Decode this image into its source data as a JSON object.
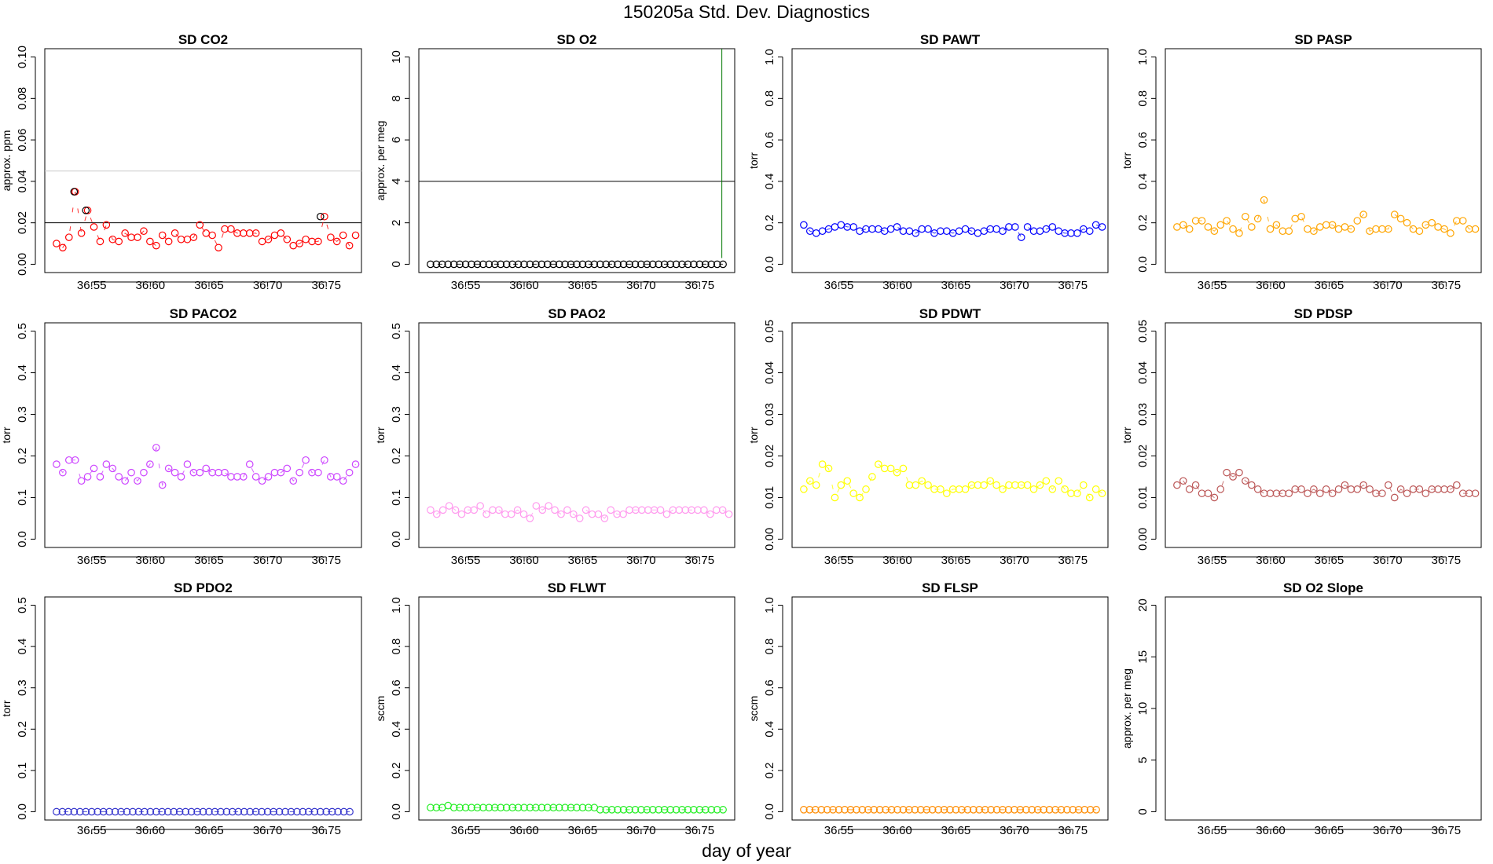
{
  "figure": {
    "title": "150205a   Std. Dev. Diagnostics",
    "xlabel": "day of year"
  },
  "chart_data": [
    {
      "type": "scatter",
      "title": "SD CO2",
      "ylabel": "approx. ppm",
      "color": "#ff0000",
      "xlim": [
        36.51,
        36.78
      ],
      "ylim": [
        0,
        0.1
      ],
      "xticks": [
        "36.55",
        "36.60",
        "36.65",
        "36.70",
        "36.75"
      ],
      "yticks": [
        "0.00",
        "0.02",
        "0.04",
        "0.06",
        "0.08",
        "0.10"
      ],
      "hlines": [
        {
          "y": 0.02,
          "color": "#000000"
        },
        {
          "y": 0.045,
          "color": "#cccccc"
        }
      ],
      "highlight": [
        {
          "x": 36.535,
          "y": 0.035
        },
        {
          "x": 36.545,
          "y": 0.026
        },
        {
          "x": 36.745,
          "y": 0.023
        }
      ],
      "x0": 36.52,
      "x1": 36.775,
      "values": [
        0.01,
        0.008,
        0.013,
        0.035,
        0.015,
        0.026,
        0.018,
        0.011,
        0.019,
        0.012,
        0.011,
        0.015,
        0.013,
        0.013,
        0.016,
        0.011,
        0.009,
        0.014,
        0.011,
        0.015,
        0.012,
        0.012,
        0.013,
        0.019,
        0.015,
        0.014,
        0.008,
        0.017,
        0.017,
        0.015,
        0.015,
        0.015,
        0.015,
        0.011,
        0.012,
        0.014,
        0.015,
        0.012,
        0.009,
        0.01,
        0.012,
        0.011,
        0.011,
        0.023,
        0.013,
        0.011,
        0.014,
        0.009,
        0.014
      ]
    },
    {
      "type": "scatter",
      "title": "SD O2",
      "ylabel": "approx. per meg",
      "color": "#000000",
      "xlim": [
        36.51,
        36.78
      ],
      "ylim": [
        0,
        10
      ],
      "xticks": [
        "36.55",
        "36.60",
        "36.65",
        "36.70",
        "36.75"
      ],
      "yticks": [
        "0",
        "2",
        "4",
        "6",
        "8",
        "10"
      ],
      "hlines": [
        {
          "y": 4,
          "color": "#000000"
        }
      ],
      "vlines": [
        {
          "x": 36.769,
          "y0": 0.3,
          "y1": 10.4,
          "color": "#007700"
        }
      ],
      "x0": 36.52,
      "x1": 36.77,
      "values": [
        0,
        0,
        0,
        0,
        0,
        0,
        0,
        0,
        0,
        0,
        0,
        0,
        0,
        0,
        0,
        0,
        0,
        0,
        0,
        0,
        0,
        0,
        0,
        0,
        0,
        0,
        0,
        0,
        0,
        0,
        0,
        0,
        0,
        0,
        0,
        0,
        0,
        0,
        0,
        0,
        0,
        0,
        0,
        0,
        0,
        0,
        0,
        0,
        0,
        0,
        0
      ]
    },
    {
      "type": "scatter",
      "title": "SD PAWT",
      "ylabel": "torr",
      "color": "#0000ff",
      "xlim": [
        36.51,
        36.78
      ],
      "ylim": [
        0,
        1
      ],
      "xticks": [
        "36.55",
        "36.60",
        "36.65",
        "36.70",
        "36.75"
      ],
      "yticks": [
        "0.0",
        "0.2",
        "0.4",
        "0.6",
        "0.8",
        "1.0"
      ],
      "x0": 36.52,
      "x1": 36.775,
      "values": [
        0.19,
        0.16,
        0.15,
        0.16,
        0.17,
        0.18,
        0.19,
        0.18,
        0.18,
        0.16,
        0.17,
        0.17,
        0.17,
        0.16,
        0.17,
        0.18,
        0.16,
        0.16,
        0.15,
        0.17,
        0.17,
        0.15,
        0.16,
        0.16,
        0.15,
        0.16,
        0.17,
        0.16,
        0.15,
        0.16,
        0.17,
        0.17,
        0.16,
        0.18,
        0.18,
        0.13,
        0.18,
        0.16,
        0.16,
        0.17,
        0.18,
        0.16,
        0.15,
        0.15,
        0.15,
        0.17,
        0.16,
        0.19,
        0.18
      ]
    },
    {
      "type": "scatter",
      "title": "SD PASP",
      "ylabel": "torr",
      "color": "#ffa500",
      "xlim": [
        36.51,
        36.78
      ],
      "ylim": [
        0,
        1
      ],
      "xticks": [
        "36.55",
        "36.60",
        "36.65",
        "36.70",
        "36.75"
      ],
      "yticks": [
        "0.0",
        "0.2",
        "0.4",
        "0.6",
        "0.8",
        "1.0"
      ],
      "x0": 36.52,
      "x1": 36.775,
      "values": [
        0.18,
        0.19,
        0.17,
        0.21,
        0.21,
        0.18,
        0.16,
        0.19,
        0.21,
        0.17,
        0.15,
        0.23,
        0.18,
        0.22,
        0.31,
        0.17,
        0.19,
        0.16,
        0.16,
        0.22,
        0.23,
        0.17,
        0.16,
        0.18,
        0.19,
        0.19,
        0.17,
        0.18,
        0.17,
        0.21,
        0.24,
        0.16,
        0.17,
        0.17,
        0.17,
        0.24,
        0.22,
        0.2,
        0.17,
        0.16,
        0.19,
        0.2,
        0.18,
        0.17,
        0.15,
        0.21,
        0.21,
        0.17,
        0.17
      ]
    },
    {
      "type": "scatter",
      "title": "SD PACO2",
      "ylabel": "torr",
      "color": "#cc44ff",
      "xlim": [
        36.51,
        36.78
      ],
      "ylim": [
        0,
        0.5
      ],
      "xticks": [
        "36.55",
        "36.60",
        "36.65",
        "36.70",
        "36.75"
      ],
      "yticks": [
        "0.0",
        "0.1",
        "0.2",
        "0.3",
        "0.4",
        "0.5"
      ],
      "x0": 36.52,
      "x1": 36.775,
      "values": [
        0.18,
        0.16,
        0.19,
        0.19,
        0.14,
        0.15,
        0.17,
        0.15,
        0.18,
        0.17,
        0.15,
        0.14,
        0.16,
        0.14,
        0.16,
        0.18,
        0.22,
        0.13,
        0.17,
        0.16,
        0.15,
        0.18,
        0.16,
        0.16,
        0.17,
        0.16,
        0.16,
        0.16,
        0.15,
        0.15,
        0.15,
        0.18,
        0.15,
        0.14,
        0.15,
        0.16,
        0.16,
        0.17,
        0.14,
        0.16,
        0.19,
        0.16,
        0.16,
        0.19,
        0.15,
        0.15,
        0.14,
        0.16,
        0.18
      ]
    },
    {
      "type": "scatter",
      "title": "SD PAO2",
      "ylabel": "torr",
      "color": "#ff99ee",
      "xlim": [
        36.51,
        36.78
      ],
      "ylim": [
        0,
        0.5
      ],
      "xticks": [
        "36.55",
        "36.60",
        "36.65",
        "36.70",
        "36.75"
      ],
      "yticks": [
        "0.0",
        "0.1",
        "0.2",
        "0.3",
        "0.4",
        "0.5"
      ],
      "x0": 36.52,
      "x1": 36.775,
      "values": [
        0.07,
        0.06,
        0.07,
        0.08,
        0.07,
        0.06,
        0.07,
        0.07,
        0.08,
        0.06,
        0.07,
        0.07,
        0.06,
        0.06,
        0.07,
        0.06,
        0.05,
        0.08,
        0.07,
        0.08,
        0.07,
        0.06,
        0.07,
        0.06,
        0.05,
        0.07,
        0.06,
        0.06,
        0.05,
        0.07,
        0.06,
        0.06,
        0.07,
        0.07,
        0.07,
        0.07,
        0.07,
        0.07,
        0.06,
        0.07,
        0.07,
        0.07,
        0.07,
        0.07,
        0.07,
        0.06,
        0.07,
        0.07,
        0.06
      ]
    },
    {
      "type": "scatter",
      "title": "SD PDWT",
      "ylabel": "torr",
      "color": "#ffff00",
      "xlim": [
        36.51,
        36.78
      ],
      "ylim": [
        0,
        0.05
      ],
      "xticks": [
        "36.55",
        "36.60",
        "36.65",
        "36.70",
        "36.75"
      ],
      "yticks": [
        "0.00",
        "0.01",
        "0.02",
        "0.03",
        "0.04",
        "0.05"
      ],
      "x0": 36.52,
      "x1": 36.775,
      "values": [
        0.012,
        0.014,
        0.013,
        0.018,
        0.017,
        0.01,
        0.013,
        0.014,
        0.011,
        0.01,
        0.012,
        0.015,
        0.018,
        0.017,
        0.017,
        0.016,
        0.017,
        0.013,
        0.013,
        0.014,
        0.013,
        0.012,
        0.012,
        0.011,
        0.012,
        0.012,
        0.012,
        0.013,
        0.013,
        0.013,
        0.014,
        0.013,
        0.012,
        0.013,
        0.013,
        0.013,
        0.013,
        0.012,
        0.013,
        0.014,
        0.012,
        0.014,
        0.012,
        0.011,
        0.011,
        0.013,
        0.01,
        0.012,
        0.011
      ]
    },
    {
      "type": "scatter",
      "title": "SD PDSP",
      "ylabel": "torr",
      "color": "#bb5555",
      "xlim": [
        36.51,
        36.78
      ],
      "ylim": [
        0,
        0.05
      ],
      "xticks": [
        "36.55",
        "36.60",
        "36.65",
        "36.70",
        "36.75"
      ],
      "yticks": [
        "0.00",
        "0.01",
        "0.02",
        "0.03",
        "0.04",
        "0.05"
      ],
      "x0": 36.52,
      "x1": 36.775,
      "values": [
        0.013,
        0.014,
        0.012,
        0.013,
        0.011,
        0.011,
        0.01,
        0.012,
        0.016,
        0.015,
        0.016,
        0.014,
        0.013,
        0.012,
        0.011,
        0.011,
        0.011,
        0.011,
        0.011,
        0.012,
        0.012,
        0.011,
        0.012,
        0.011,
        0.012,
        0.011,
        0.012,
        0.013,
        0.012,
        0.012,
        0.013,
        0.012,
        0.011,
        0.011,
        0.013,
        0.01,
        0.012,
        0.011,
        0.012,
        0.012,
        0.011,
        0.012,
        0.012,
        0.012,
        0.012,
        0.013,
        0.011,
        0.011,
        0.011
      ]
    },
    {
      "type": "scatter",
      "title": "SD PDO2",
      "ylabel": "torr",
      "color": "#3333cc",
      "xlim": [
        36.51,
        36.78
      ],
      "ylim": [
        0,
        0.5
      ],
      "xticks": [
        "36.55",
        "36.60",
        "36.65",
        "36.70",
        "36.75"
      ],
      "yticks": [
        "0.0",
        "0.1",
        "0.2",
        "0.3",
        "0.4",
        "0.5"
      ],
      "x0": 36.52,
      "x1": 36.77,
      "values": [
        0,
        0,
        0,
        0,
        0,
        0,
        0,
        0,
        0,
        0,
        0,
        0,
        0,
        0,
        0,
        0,
        0,
        0,
        0,
        0,
        0,
        0,
        0,
        0,
        0,
        0,
        0,
        0,
        0,
        0,
        0,
        0,
        0,
        0,
        0,
        0,
        0,
        0,
        0,
        0,
        0,
        0,
        0,
        0,
        0,
        0,
        0,
        0,
        0,
        0,
        0
      ]
    },
    {
      "type": "scatter",
      "title": "SD FLWT",
      "ylabel": "sccm",
      "color": "#22ee22",
      "xlim": [
        36.51,
        36.78
      ],
      "ylim": [
        0,
        1
      ],
      "xticks": [
        "36.55",
        "36.60",
        "36.65",
        "36.70",
        "36.75"
      ],
      "yticks": [
        "0.0",
        "0.2",
        "0.4",
        "0.6",
        "0.8",
        "1.0"
      ],
      "x0": 36.52,
      "x1": 36.77,
      "values": [
        0.02,
        0.02,
        0.02,
        0.03,
        0.02,
        0.02,
        0.02,
        0.02,
        0.02,
        0.02,
        0.02,
        0.02,
        0.02,
        0.02,
        0.02,
        0.02,
        0.02,
        0.02,
        0.02,
        0.02,
        0.02,
        0.02,
        0.02,
        0.02,
        0.02,
        0.02,
        0.02,
        0.02,
        0.02,
        0.01,
        0.01,
        0.01,
        0.01,
        0.01,
        0.01,
        0.01,
        0.01,
        0.01,
        0.01,
        0.01,
        0.01,
        0.01,
        0.01,
        0.01,
        0.01,
        0.01,
        0.01,
        0.01,
        0.01,
        0.01,
        0.01
      ]
    },
    {
      "type": "scatter",
      "title": "SD FLSP",
      "ylabel": "sccm",
      "color": "#ff8c00",
      "xlim": [
        36.51,
        36.78
      ],
      "ylim": [
        0,
        1
      ],
      "xticks": [
        "36.55",
        "36.60",
        "36.65",
        "36.70",
        "36.75"
      ],
      "yticks": [
        "0.0",
        "0.2",
        "0.4",
        "0.6",
        "0.8",
        "1.0"
      ],
      "x0": 36.52,
      "x1": 36.77,
      "values": [
        0.01,
        0.01,
        0.01,
        0.01,
        0.01,
        0.01,
        0.01,
        0.01,
        0.01,
        0.01,
        0.01,
        0.01,
        0.01,
        0.01,
        0.01,
        0.01,
        0.01,
        0.01,
        0.01,
        0.01,
        0.01,
        0.01,
        0.01,
        0.01,
        0.01,
        0.01,
        0.01,
        0.01,
        0.01,
        0.01,
        0.01,
        0.01,
        0.01,
        0.01,
        0.01,
        0.01,
        0.01,
        0.01,
        0.01,
        0.01,
        0.01,
        0.01,
        0.01,
        0.01,
        0.01,
        0.01,
        0.01,
        0.01,
        0.01,
        0.01,
        0.01
      ]
    },
    {
      "type": "scatter",
      "title": "SD O2 Slope",
      "ylabel": "approx. per meg",
      "color": "#000000",
      "xlim": [
        36.51,
        36.78
      ],
      "ylim": [
        0,
        20
      ],
      "xticks": [
        "36.55",
        "36.60",
        "36.65",
        "36.70",
        "36.75"
      ],
      "yticks": [
        "0",
        "5",
        "10",
        "15",
        "20"
      ],
      "values": []
    }
  ]
}
